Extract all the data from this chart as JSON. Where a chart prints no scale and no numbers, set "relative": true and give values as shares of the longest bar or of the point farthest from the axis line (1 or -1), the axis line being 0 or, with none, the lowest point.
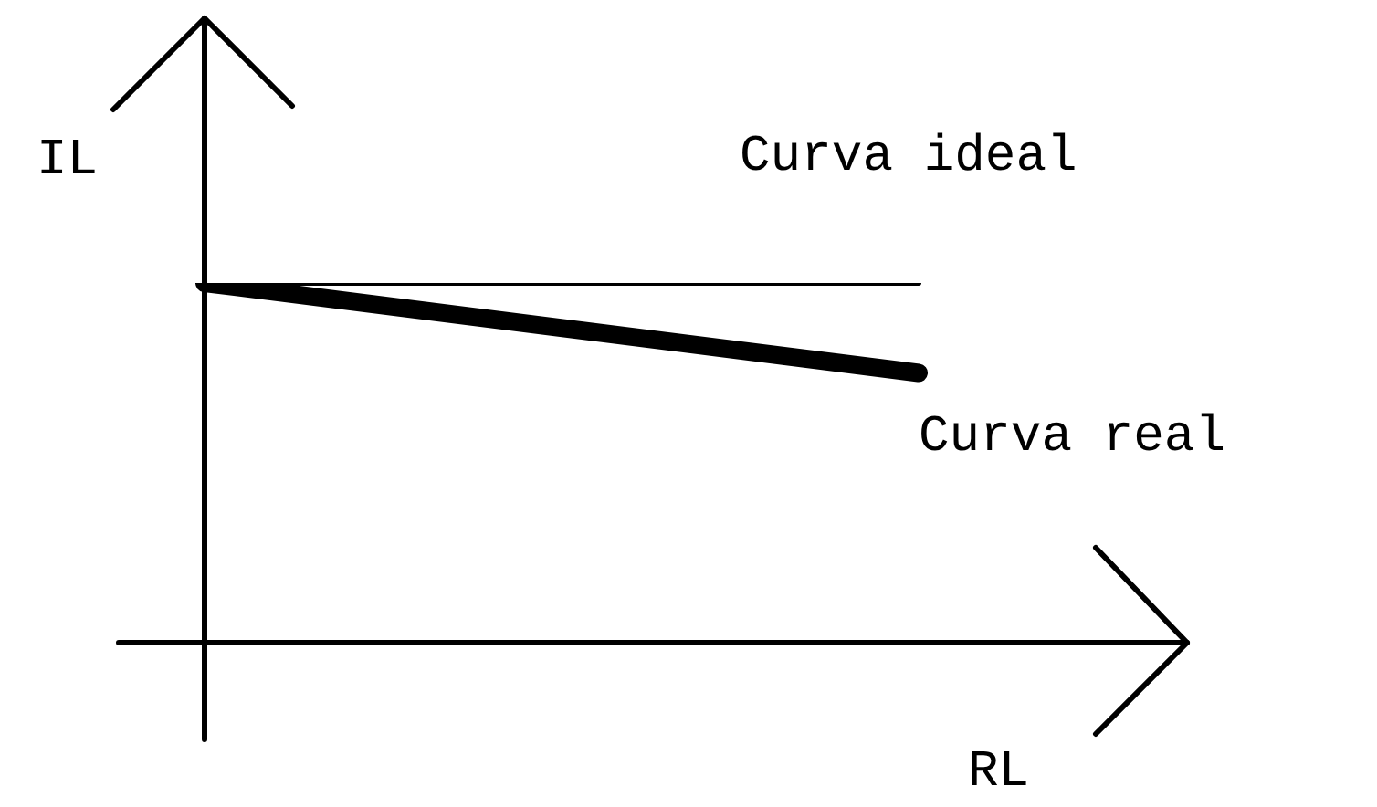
{
  "chart_data": {
    "type": "line",
    "relative": true,
    "xlabel": "RL",
    "ylabel": "IL",
    "categories": [
      null,
      null
    ],
    "legend": false,
    "marker": "none",
    "line_style": "solid",
    "series": [
      {
        "name": "Curva ideal",
        "color": "#000000",
        "values": [
          1,
          1
        ]
      },
      {
        "name": "Curva real",
        "color": "#000000",
        "values": [
          1,
          0.75
        ]
      }
    ]
  }
}
